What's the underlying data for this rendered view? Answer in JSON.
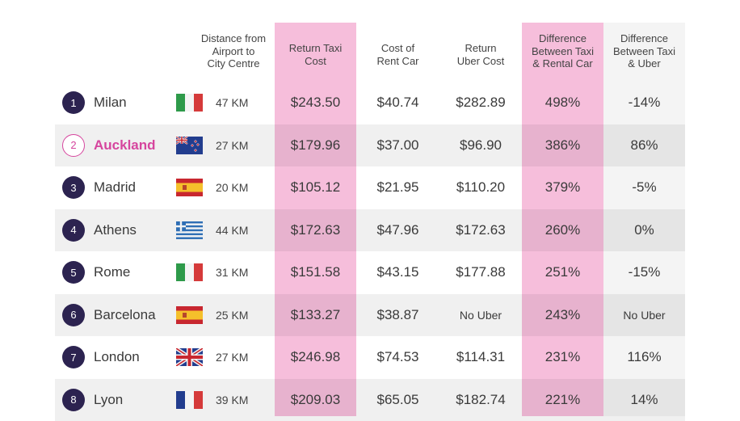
{
  "headers": {
    "distance": "Distance from Airport to City Centre",
    "taxi": "Return Taxi Cost",
    "rent": "Cost of Rent Car",
    "uber": "Return Uber Cost",
    "diff_rental": "Difference Between Taxi & Rental Car",
    "diff_uber": "Difference Between Taxi & Uber"
  },
  "header_lines": {
    "distance": [
      "Distance from",
      "Airport to",
      "City Centre"
    ],
    "taxi": [
      "Return Taxi",
      "Cost"
    ],
    "rent": [
      "Cost of",
      "Rent Car"
    ],
    "uber": [
      "Return",
      "Uber Cost"
    ],
    "diff_rental": [
      "Difference",
      "Between Taxi",
      "& Rental Car"
    ],
    "diff_uber": [
      "Difference",
      "Between Taxi",
      "& Uber"
    ]
  },
  "colors": {
    "taxi_column": "#f6bedb",
    "taxi_column_shade": "#e9b1cf",
    "diff_column": "#f6bedb",
    "uber_diff_column": "#f4f4f4",
    "rank_fill": "#2c2350",
    "highlight": "#d6459e"
  },
  "rows": [
    {
      "rank": "1",
      "city": "Milan",
      "flag": "italy-flag",
      "distance": "47 KM",
      "taxi": "$243.50",
      "rent": "$40.74",
      "uber": "$282.89",
      "diff_rental": "498%",
      "diff_uber": "-14%"
    },
    {
      "rank": "2",
      "city": "Auckland",
      "flag": "new-zealand-flag",
      "distance": "27 KM",
      "taxi": "$179.96",
      "rent": "$37.00",
      "uber": "$96.90",
      "diff_rental": "386%",
      "diff_uber": "86%"
    },
    {
      "rank": "3",
      "city": "Madrid",
      "flag": "spain-flag",
      "distance": "20 KM",
      "taxi": "$105.12",
      "rent": "$21.95",
      "uber": "$110.20",
      "diff_rental": "379%",
      "diff_uber": "-5%"
    },
    {
      "rank": "4",
      "city": "Athens",
      "flag": "greece-flag",
      "distance": "44 KM",
      "taxi": "$172.63",
      "rent": "$47.96",
      "uber": "$172.63",
      "diff_rental": "260%",
      "diff_uber": "0%"
    },
    {
      "rank": "5",
      "city": "Rome",
      "flag": "italy-flag",
      "distance": "31 KM",
      "taxi": "$151.58",
      "rent": "$43.15",
      "uber": "$177.88",
      "diff_rental": "251%",
      "diff_uber": "-15%"
    },
    {
      "rank": "6",
      "city": "Barcelona",
      "flag": "spain-flag",
      "distance": "25 KM",
      "taxi": "$133.27",
      "rent": "$38.87",
      "uber": "No Uber",
      "diff_rental": "243%",
      "diff_uber": "No Uber"
    },
    {
      "rank": "7",
      "city": "London",
      "flag": "uk-flag",
      "distance": "27 KM",
      "taxi": "$246.98",
      "rent": "$74.53",
      "uber": "$114.31",
      "diff_rental": "231%",
      "diff_uber": "116%"
    },
    {
      "rank": "8",
      "city": "Lyon",
      "flag": "france-flag",
      "distance": "39 KM",
      "taxi": "$209.03",
      "rent": "$65.05",
      "uber": "$182.74",
      "diff_rental": "221%",
      "diff_uber": "14%"
    }
  ]
}
